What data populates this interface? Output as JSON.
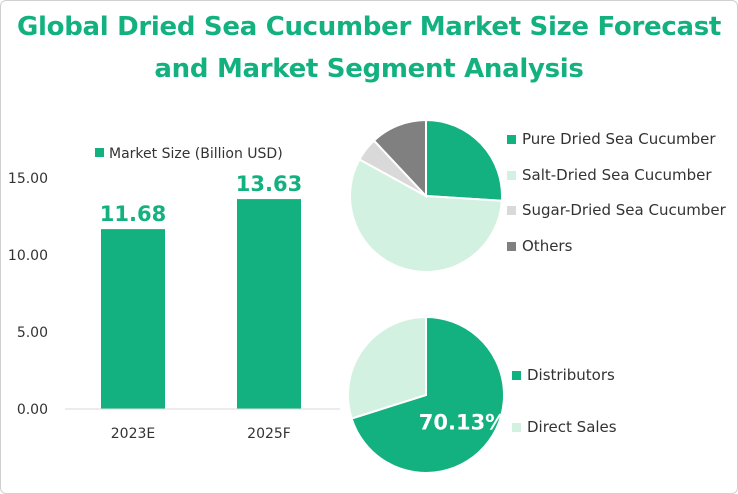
{
  "title": {
    "line1": "Global Dried Sea Cucumber Market Size Forecast",
    "line2": "and Market Segment Analysis"
  },
  "colors": {
    "accent": "#12b17f",
    "light_green": "#d3f1e0",
    "light_gray": "#d9d9d9",
    "dark_gray": "#808080"
  },
  "chart_data": [
    {
      "type": "bar",
      "categories": [
        "2023E",
        "2025F"
      ],
      "series": [
        {
          "name": "Market Size (Billion USD)",
          "values": [
            11.68,
            13.63
          ],
          "labels": [
            "11.68",
            "13.63"
          ]
        }
      ],
      "yticks": [
        "0.00",
        "5.00",
        "10.00",
        "15.00"
      ],
      "ylim": [
        0,
        15
      ],
      "legend": "top",
      "grid": false
    },
    {
      "type": "pie",
      "labels": [
        "Pure Dried Sea Cucumber",
        "Salt-Dried Sea Cucumber",
        "Sugar-Dried Sea Cucumber",
        "Others"
      ],
      "values": [
        26,
        57,
        5,
        12
      ],
      "colors": [
        "#12b17f",
        "#d3f1e0",
        "#d9d9d9",
        "#808080"
      ],
      "legend": "right"
    },
    {
      "type": "pie",
      "labels": [
        "Distributors",
        "Direct Sales"
      ],
      "values": [
        70.13,
        29.87
      ],
      "data_labels": [
        "70.13%",
        ""
      ],
      "colors": [
        "#12b17f",
        "#d3f1e0"
      ],
      "legend": "right"
    }
  ]
}
